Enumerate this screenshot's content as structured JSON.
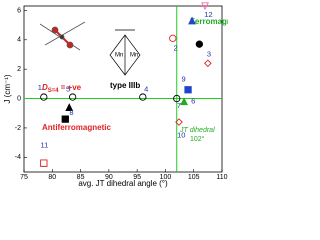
{
  "chart_data": {
    "type": "scatter",
    "x_label": "avg. JT dihedral angle (°)",
    "y_label": "J (cm⁻¹)",
    "xlim": [
      75,
      110
    ],
    "xticks": [
      75,
      80,
      85,
      90,
      95,
      100,
      105,
      110
    ],
    "ylim": [
      -5,
      6.3
    ],
    "yticks": [
      -4,
      -2,
      0,
      2,
      4,
      6
    ],
    "vline": 102,
    "hline": 0,
    "ref_color": "#22cc22",
    "points": [
      {
        "x": 78.5,
        "y": 0.1,
        "color": "#000000",
        "marker": "circle",
        "filled": false
      },
      {
        "x": 83.6,
        "y": 0.1,
        "color": "#000000",
        "marker": "circle",
        "filled": false
      },
      {
        "x": 83,
        "y": -0.6,
        "color": "#000000",
        "marker": "triangle",
        "filled": true
      },
      {
        "x": 82.3,
        "y": -1.4,
        "color": "#000000",
        "marker": "square",
        "filled": true
      },
      {
        "x": 78.5,
        "y": -4.4,
        "color": "#dd2222",
        "marker": "square",
        "filled": false
      },
      {
        "x": 96,
        "y": 0.1,
        "color": "#000000",
        "marker": "circle",
        "filled": false
      },
      {
        "x": 102,
        "y": 0,
        "color": "#000000",
        "marker": "circle",
        "filled": false
      },
      {
        "x": 103.3,
        "y": -0.2,
        "color": "#22aa22",
        "marker": "triangle",
        "filled": true
      },
      {
        "x": 104,
        "y": 0.6,
        "color": "#2244cc",
        "marker": "square",
        "filled": true
      },
      {
        "x": 102.4,
        "y": -1.6,
        "color": "#dd2222",
        "marker": "diamond",
        "filled": false
      },
      {
        "x": 104.7,
        "y": 5.3,
        "color": "#2244cc",
        "marker": "triangle",
        "filled": true
      },
      {
        "x": 106,
        "y": 3.7,
        "color": "#000000",
        "marker": "circle",
        "filled": true
      },
      {
        "x": 107.5,
        "y": 2.4,
        "color": "#dd2222",
        "marker": "diamond",
        "filled": false
      },
      {
        "x": 107,
        "y": 6.3,
        "color": "#ff66aa",
        "marker": "triangle-down",
        "filled": false
      },
      {
        "x": 101.3,
        "y": 4.1,
        "color": "#dd2222",
        "marker": "circle",
        "filled": false
      }
    ],
    "point_labels": [
      {
        "text": "1",
        "x": 77.8,
        "y": 0.7
      },
      {
        "text": "5",
        "x": 82.8,
        "y": 0.6
      },
      {
        "text": "8",
        "x": 83.4,
        "y": -1.0
      },
      {
        "text": "11",
        "x": 78.6,
        "y": -3.2
      },
      {
        "text": "4",
        "x": 96.6,
        "y": 0.6
      },
      {
        "text": "12",
        "x": 107.6,
        "y": 5.7
      },
      {
        "text": "2",
        "x": 101.8,
        "y": 3.4
      },
      {
        "text": "3",
        "x": 107.7,
        "y": 3.0
      },
      {
        "text": "9",
        "x": 103.2,
        "y": 1.3
      },
      {
        "text": "6",
        "x": 104.9,
        "y": -0.2
      },
      {
        "text": "7",
        "x": 102.4,
        "y": -0.5
      },
      {
        "text": "10",
        "x": 102.8,
        "y": -2.5
      }
    ],
    "annotations": {
      "ferro": "Ferromagnetic",
      "antiferro": "Antiferromagnetic",
      "d_main": "D",
      "d_sub": "S=4",
      "d_rest": "= +ve",
      "type": "type IIIb",
      "jt": "JT dihedral",
      "jt_value": "102°"
    }
  }
}
